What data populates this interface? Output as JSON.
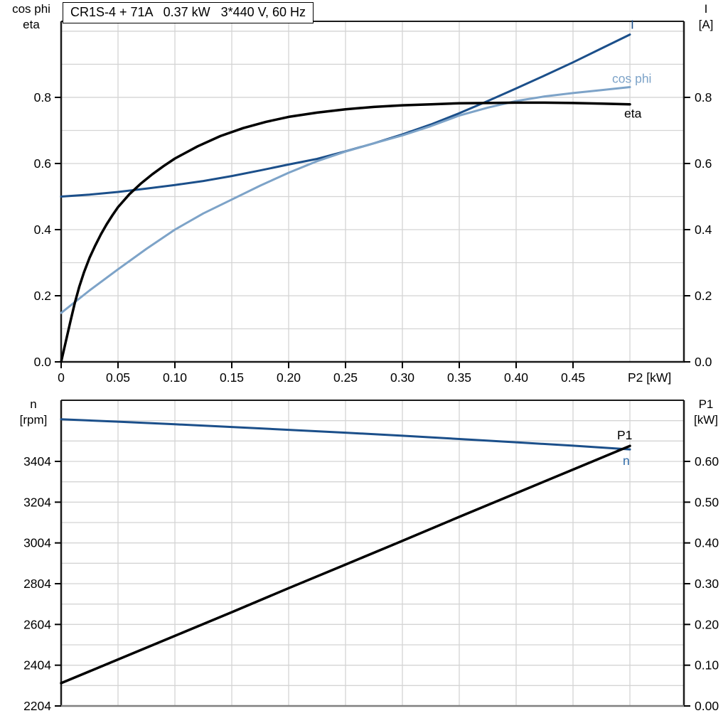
{
  "title": "CR1S-4 + 71A   0.37 kW   3*440 V, 60 Hz",
  "colors": {
    "dark_blue": "#1b4f8a",
    "light_blue": "#7da3c8",
    "black": "#000000",
    "grid": "#d4d4d4",
    "frame": "#1a1a1a",
    "frame_bottom_light": "#808080"
  },
  "chart_data": [
    {
      "type": "line",
      "title": "CR1S-4 + 71A   0.37 kW   3*440 V, 60 Hz",
      "xlabel": "P2 [kW]",
      "ylabel_left": [
        "cos phi",
        "eta"
      ],
      "ylabel_right": [
        "I",
        "[A]"
      ],
      "xlim": [
        0,
        0.5475
      ],
      "ylim_left": [
        0,
        1.03
      ],
      "ylim_right": [
        0,
        1.03
      ],
      "grid": "on",
      "x_grid_step": 0.05,
      "y_grid_step": 0.1,
      "legend_position": "curve-end-labels",
      "xticks": {
        "values": [
          0,
          0.05,
          0.1,
          0.15,
          0.2,
          0.25,
          0.3,
          0.35,
          0.4,
          0.45
        ],
        "labels": [
          "0",
          "0.05",
          "0.10",
          "0.15",
          "0.20",
          "0.25",
          "0.30",
          "0.35",
          "0.40",
          "0.45"
        ]
      },
      "yticks_left": {
        "values": [
          0,
          0.2,
          0.4,
          0.6,
          0.8
        ],
        "labels": [
          "0.0",
          "0.2",
          "0.4",
          "0.6",
          "0.8"
        ]
      },
      "yticks_right": {
        "values": [
          0,
          0.2,
          0.4,
          0.6,
          0.8
        ],
        "labels": [
          "0.0",
          "0.2",
          "0.4",
          "0.6",
          "0.8"
        ]
      },
      "series": [
        {
          "name": "I",
          "label": "I",
          "axis": "right",
          "color": "#1b4f8a",
          "width": 3,
          "points": [
            [
              0,
              0.5
            ],
            [
              0.025,
              0.506
            ],
            [
              0.05,
              0.514
            ],
            [
              0.075,
              0.524
            ],
            [
              0.1,
              0.535
            ],
            [
              0.125,
              0.547
            ],
            [
              0.15,
              0.562
            ],
            [
              0.175,
              0.579
            ],
            [
              0.2,
              0.597
            ],
            [
              0.225,
              0.614
            ],
            [
              0.25,
              0.637
            ],
            [
              0.275,
              0.661
            ],
            [
              0.3,
              0.688
            ],
            [
              0.325,
              0.718
            ],
            [
              0.35,
              0.752
            ],
            [
              0.375,
              0.789
            ],
            [
              0.4,
              0.827
            ],
            [
              0.425,
              0.866
            ],
            [
              0.45,
              0.906
            ],
            [
              0.475,
              0.948
            ],
            [
              0.5,
              0.99
            ]
          ]
        },
        {
          "name": "cos phi",
          "label": "cos phi",
          "axis": "left",
          "color": "#7da3c8",
          "width": 3,
          "points": [
            [
              0,
              0.148
            ],
            [
              0.025,
              0.216
            ],
            [
              0.05,
              0.28
            ],
            [
              0.075,
              0.342
            ],
            [
              0.1,
              0.4
            ],
            [
              0.125,
              0.449
            ],
            [
              0.15,
              0.491
            ],
            [
              0.175,
              0.533
            ],
            [
              0.2,
              0.572
            ],
            [
              0.225,
              0.607
            ],
            [
              0.25,
              0.636
            ],
            [
              0.275,
              0.661
            ],
            [
              0.3,
              0.685
            ],
            [
              0.325,
              0.713
            ],
            [
              0.35,
              0.745
            ],
            [
              0.375,
              0.769
            ],
            [
              0.4,
              0.789
            ],
            [
              0.425,
              0.803
            ],
            [
              0.45,
              0.813
            ],
            [
              0.475,
              0.822
            ],
            [
              0.5,
              0.831
            ]
          ]
        },
        {
          "name": "eta",
          "label": "eta",
          "axis": "left",
          "color": "#000000",
          "width": 3.5,
          "points": [
            [
              0,
              0.0
            ],
            [
              0.004,
              0.06
            ],
            [
              0.008,
              0.12
            ],
            [
              0.012,
              0.178
            ],
            [
              0.016,
              0.228
            ],
            [
              0.02,
              0.27
            ],
            [
              0.025,
              0.315
            ],
            [
              0.03,
              0.352
            ],
            [
              0.035,
              0.386
            ],
            [
              0.04,
              0.416
            ],
            [
              0.045,
              0.443
            ],
            [
              0.05,
              0.468
            ],
            [
              0.06,
              0.507
            ],
            [
              0.07,
              0.539
            ],
            [
              0.08,
              0.567
            ],
            [
              0.09,
              0.592
            ],
            [
              0.1,
              0.615
            ],
            [
              0.12,
              0.652
            ],
            [
              0.14,
              0.683
            ],
            [
              0.16,
              0.707
            ],
            [
              0.18,
              0.726
            ],
            [
              0.2,
              0.741
            ],
            [
              0.225,
              0.754
            ],
            [
              0.25,
              0.764
            ],
            [
              0.275,
              0.771
            ],
            [
              0.3,
              0.776
            ],
            [
              0.325,
              0.779
            ],
            [
              0.35,
              0.782
            ],
            [
              0.375,
              0.783
            ],
            [
              0.4,
              0.784
            ],
            [
              0.425,
              0.784
            ],
            [
              0.45,
              0.783
            ],
            [
              0.475,
              0.781
            ],
            [
              0.5,
              0.779
            ]
          ]
        }
      ]
    },
    {
      "type": "line",
      "title": "",
      "xlabel": "",
      "ylabel_left": [
        "n",
        "[rpm]"
      ],
      "ylabel_right": [
        "P1",
        "[kW]"
      ],
      "xlim": [
        0,
        0.5475
      ],
      "ylim_left": [
        2204,
        3704
      ],
      "ylim_right": [
        0,
        0.75
      ],
      "grid": "on",
      "x_grid_step": 0.05,
      "y_grid_step": 100,
      "legend_position": "curve-end-labels",
      "xticks": {
        "values": [],
        "labels": []
      },
      "yticks_left": {
        "values": [
          2204,
          2404,
          2604,
          2804,
          3004,
          3204,
          3404
        ],
        "labels": [
          "2204",
          "2404",
          "2604",
          "2804",
          "3004",
          "3204",
          "3404"
        ]
      },
      "yticks_right": {
        "values": [
          0,
          0.1,
          0.2,
          0.3,
          0.4,
          0.5,
          0.6
        ],
        "labels": [
          "0.00",
          "0.10",
          "0.20",
          "0.30",
          "0.40",
          "0.50",
          "0.60"
        ]
      },
      "series": [
        {
          "name": "n",
          "label": "n",
          "axis": "left",
          "color": "#1b4f8a",
          "label_color": "#2e6aa8",
          "width": 3,
          "points": [
            [
              0,
              3611
            ],
            [
              0.05,
              3599
            ],
            [
              0.1,
              3586
            ],
            [
              0.15,
              3573
            ],
            [
              0.2,
              3559
            ],
            [
              0.25,
              3545
            ],
            [
              0.3,
              3530
            ],
            [
              0.35,
              3514
            ],
            [
              0.4,
              3498
            ],
            [
              0.45,
              3481
            ],
            [
              0.5,
              3463
            ]
          ]
        },
        {
          "name": "P1",
          "label": "P1",
          "axis": "right",
          "color": "#000000",
          "width": 3.5,
          "points": [
            [
              0,
              0.056
            ],
            [
              0.05,
              0.114
            ],
            [
              0.1,
              0.172
            ],
            [
              0.15,
              0.23
            ],
            [
              0.2,
              0.289
            ],
            [
              0.25,
              0.347
            ],
            [
              0.3,
              0.405
            ],
            [
              0.35,
              0.464
            ],
            [
              0.4,
              0.522
            ],
            [
              0.45,
              0.58
            ],
            [
              0.5,
              0.638
            ]
          ]
        }
      ]
    }
  ]
}
